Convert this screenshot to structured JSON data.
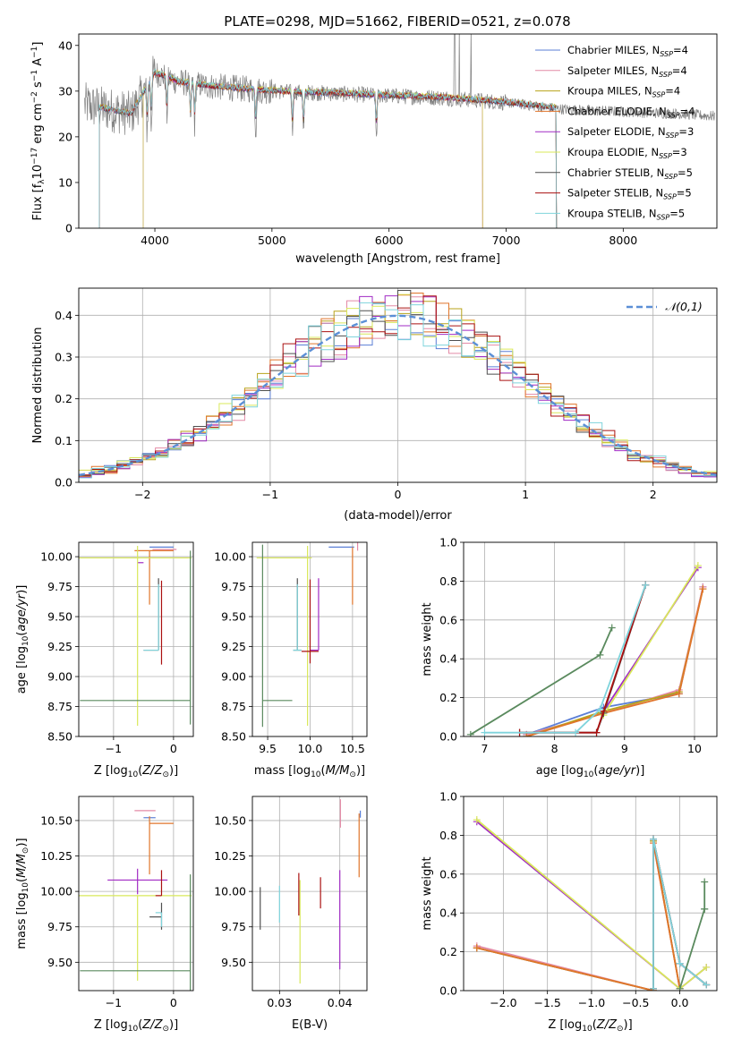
{
  "figure": {
    "title": "PLATE=0298, MJD=51662, FIBERID=0521, z=0.078"
  },
  "colors": {
    "Chabrier MILES": "#5b7fd6",
    "Salpeter MILES": "#e48aa6",
    "Kroupa MILES": "#b8a31a",
    "Chabrier ELODIE": "#e0752b",
    "Salpeter ELODIE": "#a12bc4",
    "Kroupa ELODIE": "#d9e85a",
    "Chabrier STELIB": "#4f4f4f",
    "Salpeter STELIB": "#aa1111",
    "Kroupa STELIB": "#7fd4dc",
    "data": "#808080",
    "green": "#5a8a5e",
    "normal": "#5b8fd6"
  },
  "chart_data": [
    {
      "id": "spectrum",
      "type": "line",
      "title": "PLATE=0298, MJD=51662, FIBERID=0521, z=0.078",
      "xlabel": "wavelength [Angstrom, rest frame]",
      "ylabel": "Flux [f_λ 10^-17 erg cm^-2 s^-1 A^-1]",
      "xlim": [
        3350,
        8800
      ],
      "ylim": [
        0,
        42.5
      ],
      "xticks": [
        4000,
        5000,
        6000,
        7000,
        8000
      ],
      "yticks": [
        0,
        10,
        20,
        30,
        40
      ],
      "grid": false,
      "legend_position": "top-right",
      "legend": [
        "Chabrier MILES, N_SSP=4",
        "Salpeter MILES, N_SSP=4",
        "Kroupa MILES, N_SSP=4",
        "Chabrier ELODIE, N_SSP=4",
        "Salpeter ELODIE, N_SSP=3",
        "Kroupa ELODIE, N_SSP=3",
        "Chabrier STELIB, N_SSP=5",
        "Salpeter STELIB, N_SSP=5",
        "Kroupa STELIB, N_SSP=5"
      ],
      "continuum_x": [
        3400,
        3600,
        3800,
        4000,
        4200,
        4500,
        5000,
        5500,
        6000,
        6500,
        7000,
        7500,
        8000,
        8500,
        8780
      ],
      "continuum_y": [
        27,
        26,
        25,
        34,
        32,
        31,
        30,
        29.5,
        29,
        28.5,
        27.5,
        26,
        25.5,
        25,
        24.5
      ],
      "absorption_lines": [
        3934,
        3969,
        4102,
        4304,
        4340,
        4861,
        5175,
        5270,
        5892
      ],
      "model_range": {
        "MILES": [
          3525,
          7430
        ],
        "ELODIE": [
          3900,
          6800
        ],
        "STELIB": [
          3525,
          7430
        ]
      }
    },
    {
      "id": "residuals",
      "type": "histogram",
      "xlabel": "(data-model)/error",
      "ylabel": "Normed distribution",
      "xlim": [
        -2.5,
        2.5
      ],
      "ylim": [
        0,
        0.465
      ],
      "xticks": [
        -2,
        -1,
        0,
        1,
        2
      ],
      "yticks": [
        0.0,
        0.1,
        0.2,
        0.3,
        0.4
      ],
      "grid": true,
      "legend_position": "top-right",
      "legend": [
        "𝒩(0,1)"
      ],
      "bin_width": 0.1
    },
    {
      "id": "age_vs_z",
      "type": "errorbar",
      "xlabel": "Z [log10(Z/Z⊙)]",
      "ylabel": "age  [log10(age/yr)]",
      "xlim": [
        -1.58,
        0.33
      ],
      "ylim": [
        8.5,
        10.12
      ],
      "xticks": [
        -1,
        0
      ],
      "yticks": [
        8.5,
        8.75,
        9.0,
        9.25,
        9.5,
        9.75,
        10.0
      ],
      "grid": true,
      "points": [
        {
          "x": -0.4,
          "y": 10.08,
          "xerr": [
            0.0,
            0.4
          ],
          "yerr": [
            0.0,
            0.0
          ],
          "color": "Chabrier MILES"
        },
        {
          "x": -0.35,
          "y": 10.06,
          "xerr": [
            0.0,
            0.4
          ],
          "yerr": [
            0.0,
            0.0
          ],
          "color": "Salpeter MILES"
        },
        {
          "x": -0.4,
          "y": 10.05,
          "xerr": [
            0.25,
            0.4
          ],
          "yerr": [
            0.45,
            0.0
          ],
          "color": "Chabrier ELODIE"
        },
        {
          "x": -0.5,
          "y": 9.95,
          "xerr": [
            0.1,
            0.0
          ],
          "yerr": [
            0.0,
            0.0
          ],
          "color": "Salpeter ELODIE"
        },
        {
          "x": -0.6,
          "y": 9.99,
          "xerr": [
            0.98,
            0.9
          ],
          "yerr": [
            1.4,
            0.1
          ],
          "color": "Kroupa ELODIE"
        },
        {
          "x": -0.25,
          "y": 9.22,
          "xerr": [
            0.25,
            0.0
          ],
          "yerr": [
            0.0,
            0.6
          ],
          "color": "Chabrier STELIB"
        },
        {
          "x": -0.2,
          "y": 9.2,
          "xerr": [
            0.0,
            0.0
          ],
          "yerr": [
            0.1,
            0.6
          ],
          "color": "Salpeter STELIB"
        },
        {
          "x": -0.25,
          "y": 9.22,
          "xerr": [
            0.25,
            0.0
          ],
          "yerr": [
            0.0,
            0.55
          ],
          "color": "Kroupa STELIB"
        },
        {
          "x": 0.28,
          "y": 8.8,
          "xerr": [
            1.84,
            0.0
          ],
          "yerr": [
            0.2,
            1.25
          ],
          "color": "green"
        }
      ]
    },
    {
      "id": "age_vs_mass",
      "type": "errorbar",
      "xlabel": "mass [log10(M/M⊙)]",
      "ylabel": "",
      "xlim": [
        9.32,
        10.67
      ],
      "ylim": [
        8.5,
        10.12
      ],
      "xticks": [
        9.5,
        10.0,
        10.5
      ],
      "yticks": [
        8.5,
        8.75,
        9.0,
        9.25,
        9.5,
        9.75,
        10.0
      ],
      "grid": true,
      "points": [
        {
          "x": 10.52,
          "y": 10.08,
          "xerr": [
            0.3,
            0.0
          ],
          "yerr": [
            0.0,
            0.0
          ],
          "color": "Chabrier MILES"
        },
        {
          "x": 10.56,
          "y": 10.05,
          "xerr": [
            0.0,
            0.0
          ],
          "yerr": [
            0.0,
            0.15
          ],
          "color": "Salpeter MILES"
        },
        {
          "x": 10.5,
          "y": 10.08,
          "xerr": [
            0.0,
            0.0
          ],
          "yerr": [
            0.48,
            0.0
          ],
          "color": "Chabrier ELODIE"
        },
        {
          "x": 10.1,
          "y": 9.22,
          "xerr": [
            0.1,
            0.0
          ],
          "yerr": [
            0.0,
            0.6
          ],
          "color": "Salpeter ELODIE"
        },
        {
          "x": 9.97,
          "y": 9.99,
          "xerr": [
            0.6,
            0.05
          ],
          "yerr": [
            1.4,
            0.1
          ],
          "color": "Kroupa ELODIE"
        },
        {
          "x": 9.85,
          "y": 9.22,
          "xerr": [
            0.05,
            0.05
          ],
          "yerr": [
            0.0,
            0.6
          ],
          "color": "Chabrier STELIB"
        },
        {
          "x": 10.0,
          "y": 9.21,
          "xerr": [
            0.1,
            0.1
          ],
          "yerr": [
            0.1,
            0.6
          ],
          "color": "Salpeter STELIB"
        },
        {
          "x": 9.85,
          "y": 9.22,
          "xerr": [
            0.05,
            0.05
          ],
          "yerr": [
            0.0,
            0.55
          ],
          "color": "Kroupa STELIB"
        },
        {
          "x": 9.44,
          "y": 8.8,
          "xerr": [
            0.0,
            0.35
          ],
          "yerr": [
            0.22,
            1.3
          ],
          "color": "green"
        }
      ]
    },
    {
      "id": "weight_vs_age",
      "type": "line",
      "xlabel": "age  [log10(age/yr)]",
      "ylabel": "mass weight",
      "xlim": [
        6.7,
        10.32
      ],
      "ylim": [
        0,
        1.0
      ],
      "xticks": [
        7,
        8,
        9,
        10
      ],
      "yticks": [
        0.0,
        0.2,
        0.4,
        0.6,
        0.8,
        1.0
      ],
      "grid": true,
      "series": [
        {
          "color": "Chabrier MILES",
          "x": [
            7.6,
            8.7,
            9.78,
            10.12
          ],
          "y": [
            0.01,
            0.15,
            0.22,
            0.77
          ]
        },
        {
          "color": "Salpeter MILES",
          "x": [
            7.6,
            8.7,
            9.78,
            10.12
          ],
          "y": [
            0.01,
            0.12,
            0.24,
            0.77
          ]
        },
        {
          "color": "Kroupa MILES",
          "x": [
            7.6,
            8.7,
            9.78,
            10.12
          ],
          "y": [
            0.0,
            0.13,
            0.23,
            0.76
          ]
        },
        {
          "color": "Chabrier ELODIE",
          "x": [
            7.6,
            8.7,
            9.78,
            10.12
          ],
          "y": [
            0.0,
            0.12,
            0.22,
            0.76
          ]
        },
        {
          "color": "Salpeter ELODIE",
          "x": [
            8.7,
            10.05
          ],
          "y": [
            0.13,
            0.87
          ]
        },
        {
          "color": "Kroupa ELODIE",
          "x": [
            8.7,
            10.05
          ],
          "y": [
            0.11,
            0.88
          ]
        },
        {
          "color": "Chabrier STELIB",
          "x": [
            7.5,
            8.6,
            8.7,
            9.3
          ],
          "y": [
            0.02,
            0.02,
            0.12,
            0.78
          ]
        },
        {
          "color": "Salpeter STELIB",
          "x": [
            7.5,
            8.6,
            8.7,
            9.3
          ],
          "y": [
            0.02,
            0.02,
            0.13,
            0.78
          ]
        },
        {
          "color": "Kroupa STELIB",
          "x": [
            7.0,
            8.3,
            8.65,
            9.3
          ],
          "y": [
            0.02,
            0.02,
            0.14,
            0.78
          ]
        },
        {
          "color": "green",
          "x": [
            6.8,
            8.65,
            8.82
          ],
          "y": [
            0.01,
            0.42,
            0.56
          ]
        }
      ]
    },
    {
      "id": "mass_vs_z",
      "type": "errorbar",
      "xlabel": "Z [log10(Z/Z⊙)]",
      "ylabel": "mass [log10(M/M⊙)]",
      "xlim": [
        -1.58,
        0.33
      ],
      "ylim": [
        9.3,
        10.67
      ],
      "xticks": [
        -1,
        0
      ],
      "yticks": [
        9.5,
        9.75,
        10.0,
        10.25,
        10.5
      ],
      "grid": true,
      "points": [
        {
          "x": -0.3,
          "y": 10.52,
          "xerr": [
            0.2,
            0.0
          ],
          "yerr": [
            0.0,
            0.0
          ],
          "color": "Chabrier MILES"
        },
        {
          "x": -0.3,
          "y": 10.57,
          "xerr": [
            0.35,
            0.0
          ],
          "yerr": [
            0.0,
            0.0
          ],
          "color": "Salpeter MILES"
        },
        {
          "x": -0.4,
          "y": 10.48,
          "xerr": [
            0.0,
            0.4
          ],
          "yerr": [
            0.36,
            0.05
          ],
          "color": "Chabrier ELODIE"
        },
        {
          "x": -0.6,
          "y": 10.08,
          "xerr": [
            0.5,
            0.5
          ],
          "yerr": [
            0.1,
            0.08
          ],
          "color": "Salpeter ELODIE"
        },
        {
          "x": -0.6,
          "y": 9.97,
          "xerr": [
            0.98,
            0.9
          ],
          "yerr": [
            0.6,
            0.0
          ],
          "color": "Kroupa ELODIE"
        },
        {
          "x": -0.2,
          "y": 9.82,
          "xerr": [
            0.2,
            0.0
          ],
          "yerr": [
            0.09,
            0.1
          ],
          "color": "Chabrier STELIB"
        },
        {
          "x": -0.2,
          "y": 9.97,
          "xerr": [
            0.1,
            0.0
          ],
          "yerr": [
            0.0,
            0.18
          ],
          "color": "Salpeter STELIB"
        },
        {
          "x": -0.2,
          "y": 9.85,
          "xerr": [
            0.1,
            0.0
          ],
          "yerr": [
            0.1,
            0.0
          ],
          "color": "Kroupa STELIB"
        },
        {
          "x": 0.28,
          "y": 9.44,
          "xerr": [
            1.84,
            0.0
          ],
          "yerr": [
            0.14,
            0.68
          ],
          "color": "green"
        }
      ]
    },
    {
      "id": "mass_vs_ebv",
      "type": "errorbar",
      "xlabel": "E(B-V)",
      "ylabel": "",
      "xlim": [
        0.0255,
        0.0445
      ],
      "ylim": [
        9.3,
        10.67
      ],
      "xticks": [
        0.03,
        0.04
      ],
      "yticks": [
        9.5,
        9.75,
        10.0,
        10.25,
        10.5
      ],
      "grid": true,
      "points": [
        {
          "x": 0.0268,
          "y": 9.88,
          "xerr": [
            0,
            0
          ],
          "yerr": [
            0.15,
            0.15
          ],
          "color": "Chabrier STELIB"
        },
        {
          "x": 0.03,
          "y": 9.9,
          "xerr": [
            0,
            0
          ],
          "yerr": [
            0.12,
            0.14
          ],
          "color": "Kroupa STELIB"
        },
        {
          "x": 0.0332,
          "y": 9.95,
          "xerr": [
            0,
            0
          ],
          "yerr": [
            0.12,
            0.18
          ],
          "color": "Salpeter STELIB"
        },
        {
          "x": 0.0334,
          "y": 9.6,
          "xerr": [
            0,
            0
          ],
          "yerr": [
            0.25,
            0.48
          ],
          "color": "Kroupa ELODIE"
        },
        {
          "x": 0.0368,
          "y": 10.0,
          "xerr": [
            0,
            0
          ],
          "yerr": [
            0.12,
            0.1
          ],
          "color": "Salpeter STELIB"
        },
        {
          "x": 0.04,
          "y": 9.8,
          "xerr": [
            0,
            0
          ],
          "yerr": [
            0.35,
            0.35
          ],
          "color": "Salpeter ELODIE"
        },
        {
          "x": 0.0401,
          "y": 10.55,
          "xerr": [
            0,
            0
          ],
          "yerr": [
            0.1,
            0.1
          ],
          "color": "Salpeter MILES"
        },
        {
          "x": 0.0432,
          "y": 10.3,
          "xerr": [
            0,
            0
          ],
          "yerr": [
            0.2,
            0.25
          ],
          "color": "Chabrier ELODIE"
        },
        {
          "x": 0.0434,
          "y": 10.52,
          "xerr": [
            0,
            0
          ],
          "yerr": [
            0.0,
            0.05
          ],
          "color": "Chabrier MILES"
        }
      ]
    },
    {
      "id": "weight_vs_z",
      "type": "line",
      "xlabel": "Z [log10(Z/Z⊙)]",
      "ylabel": "mass weight",
      "xlim": [
        -2.45,
        0.42
      ],
      "ylim": [
        0,
        1.0
      ],
      "xticks": [
        -2.0,
        -1.5,
        -1.0,
        -0.5,
        0.0
      ],
      "yticks": [
        0.0,
        0.2,
        0.4,
        0.6,
        0.8,
        1.0
      ],
      "grid": true,
      "series": [
        {
          "color": "Chabrier MILES",
          "x": [
            -2.3,
            -0.3,
            -0.3,
            0.0
          ],
          "y": [
            0.22,
            0.0,
            0.77,
            0.01
          ]
        },
        {
          "color": "Salpeter MILES",
          "x": [
            -2.3,
            -0.3,
            -0.3,
            0.0
          ],
          "y": [
            0.23,
            0.0,
            0.76,
            0.01
          ]
        },
        {
          "color": "Kroupa MILES",
          "x": [
            -2.3,
            -0.3,
            -0.3,
            0.0
          ],
          "y": [
            0.22,
            0.0,
            0.77,
            0.01
          ]
        },
        {
          "color": "Chabrier ELODIE",
          "x": [
            -2.3,
            -0.3,
            -0.3,
            0.0
          ],
          "y": [
            0.22,
            0.0,
            0.76,
            0.01
          ]
        },
        {
          "color": "Salpeter ELODIE",
          "x": [
            -2.3,
            0.0,
            0.3
          ],
          "y": [
            0.87,
            0.01,
            0.12
          ]
        },
        {
          "color": "Kroupa ELODIE",
          "x": [
            -2.3,
            0.0,
            0.3
          ],
          "y": [
            0.88,
            0.01,
            0.12
          ]
        },
        {
          "color": "Chabrier STELIB",
          "x": [
            -0.3,
            -0.3,
            0.0,
            0.3
          ],
          "y": [
            0.01,
            0.78,
            0.14,
            0.03
          ]
        },
        {
          "color": "Salpeter STELIB",
          "x": [
            -0.3,
            -0.3,
            0.0,
            0.3
          ],
          "y": [
            0.01,
            0.78,
            0.14,
            0.03
          ]
        },
        {
          "color": "Kroupa STELIB",
          "x": [
            -0.3,
            -0.3,
            0.0,
            0.3
          ],
          "y": [
            0.01,
            0.78,
            0.14,
            0.03
          ]
        },
        {
          "color": "green",
          "x": [
            0.0,
            0.28,
            0.28,
            0.28
          ],
          "y": [
            0.01,
            0.42,
            0.56,
            0.42
          ]
        }
      ]
    }
  ]
}
